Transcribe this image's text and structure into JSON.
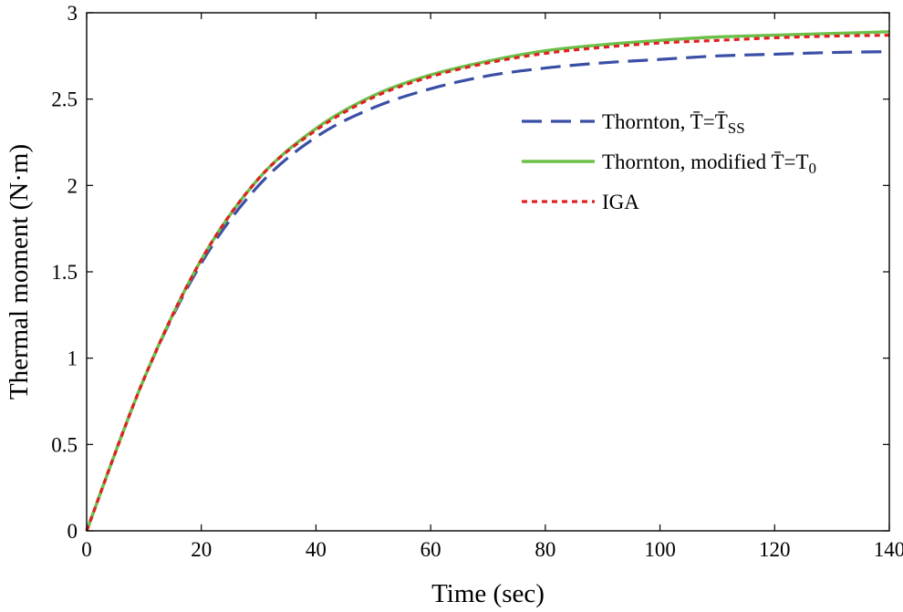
{
  "chart_data": {
    "type": "line",
    "title": "",
    "xlabel": "Time (sec)",
    "ylabel": "Thermal moment (N·m)",
    "xlim": [
      0,
      140
    ],
    "ylim": [
      0,
      3
    ],
    "xticks": [
      0,
      20,
      40,
      60,
      80,
      100,
      120,
      140
    ],
    "yticks": [
      0,
      0.5,
      1,
      1.5,
      2,
      2.5,
      3
    ],
    "xtick_labels": [
      "0",
      "20",
      "40",
      "60",
      "80",
      "100",
      "120",
      "140"
    ],
    "ytick_labels": [
      "0",
      "0.5",
      "1",
      "1.5",
      "2",
      "2.5",
      "3"
    ],
    "grid": false,
    "legend_position": "right",
    "series": [
      {
        "name": "Thornton, T̄=T̄SS",
        "label_main": "Thornton, T̄=T̄",
        "label_sub": "SS",
        "color": "#3a4ea6",
        "style": "dashed",
        "x": [
          0,
          10,
          20,
          30,
          40,
          50,
          60,
          70,
          80,
          90,
          100,
          110,
          120,
          130,
          140
        ],
        "y": [
          0,
          0.88,
          1.55,
          2.0,
          2.28,
          2.45,
          2.56,
          2.635,
          2.68,
          2.71,
          2.73,
          2.75,
          2.76,
          2.77,
          2.775
        ]
      },
      {
        "name": "Thornton, modified T̄=T0",
        "label_main": "Thornton, modified T̄=T",
        "label_sub": "0",
        "color": "#6cc04a",
        "style": "solid",
        "x": [
          0,
          10,
          20,
          30,
          40,
          50,
          60,
          70,
          80,
          90,
          100,
          110,
          120,
          130,
          140
        ],
        "y": [
          0,
          0.88,
          1.57,
          2.04,
          2.33,
          2.52,
          2.64,
          2.72,
          2.78,
          2.815,
          2.84,
          2.86,
          2.87,
          2.88,
          2.89
        ]
      },
      {
        "name": "IGA",
        "label_main": "IGA",
        "label_sub": "",
        "color": "#e02020",
        "style": "dotted",
        "x": [
          0,
          10,
          20,
          30,
          40,
          50,
          60,
          70,
          80,
          90,
          100,
          110,
          120,
          130,
          140
        ],
        "y": [
          0,
          0.88,
          1.57,
          2.04,
          2.32,
          2.51,
          2.63,
          2.71,
          2.765,
          2.8,
          2.825,
          2.84,
          2.855,
          2.865,
          2.87
        ]
      }
    ]
  }
}
